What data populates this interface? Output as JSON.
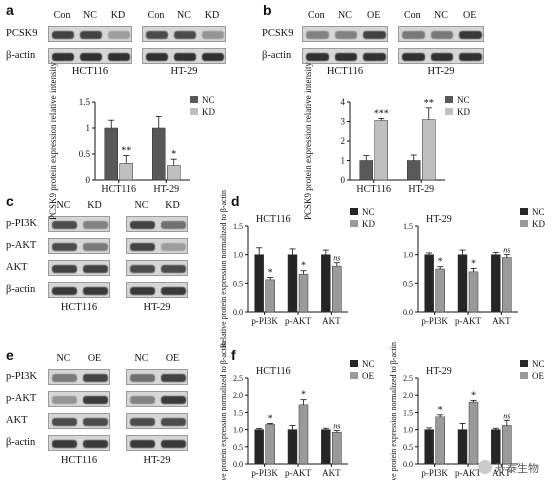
{
  "panels": {
    "a": {
      "letter": "a",
      "blot": {
        "row_labels": [
          "PCSK9",
          "β-actin"
        ],
        "groups": [
          {
            "cell_line": "HCT116",
            "lanes": [
              "Con",
              "NC",
              "KD"
            ],
            "rows": [
              [
                0.85,
                0.85,
                0.35
              ],
              [
                0.95,
                0.95,
                0.95
              ]
            ]
          },
          {
            "cell_line": "HT-29",
            "lanes": [
              "Con",
              "NC",
              "KD"
            ],
            "rows": [
              [
                0.8,
                0.8,
                0.4
              ],
              [
                0.95,
                0.95,
                0.95
              ]
            ]
          }
        ]
      }
    },
    "b": {
      "letter": "b",
      "blot": {
        "row_labels": [
          "PCSK9",
          "β-actin"
        ],
        "groups": [
          {
            "cell_line": "HCT116",
            "lanes": [
              "Con",
              "NC",
              "OE"
            ],
            "rows": [
              [
                0.5,
                0.5,
                0.85
              ],
              [
                0.95,
                0.95,
                0.95
              ]
            ]
          },
          {
            "cell_line": "HT-29",
            "lanes": [
              "Con",
              "NC",
              "OE"
            ],
            "rows": [
              [
                0.55,
                0.55,
                0.9
              ],
              [
                0.95,
                0.95,
                0.95
              ]
            ]
          }
        ]
      }
    },
    "c": {
      "letter": "c",
      "blot": {
        "row_labels": [
          "p-PI3K",
          "p-AKT",
          "AKT",
          "β-actin"
        ],
        "groups": [
          {
            "cell_line": "HCT116",
            "lanes": [
              "NC",
              "KD"
            ],
            "rows": [
              [
                0.8,
                0.5
              ],
              [
                0.8,
                0.55
              ],
              [
                0.85,
                0.85
              ],
              [
                0.9,
                0.9
              ]
            ]
          },
          {
            "cell_line": "HT-29",
            "lanes": [
              "NC",
              "KD"
            ],
            "rows": [
              [
                0.85,
                0.6
              ],
              [
                0.85,
                0.35
              ],
              [
                0.8,
                0.8
              ],
              [
                0.9,
                0.9
              ]
            ]
          }
        ]
      }
    },
    "e": {
      "letter": "e",
      "blot": {
        "row_labels": [
          "p-PI3K",
          "p-AKT",
          "AKT",
          "β-actin"
        ],
        "groups": [
          {
            "cell_line": "HCT116",
            "lanes": [
              "NC",
              "OE"
            ],
            "rows": [
              [
                0.55,
                0.85
              ],
              [
                0.4,
                0.9
              ],
              [
                0.8,
                0.8
              ],
              [
                0.9,
                0.9
              ]
            ]
          },
          {
            "cell_line": "HT-29",
            "lanes": [
              "NC",
              "OE"
            ],
            "rows": [
              [
                0.6,
                0.85
              ],
              [
                0.5,
                0.9
              ],
              [
                0.8,
                0.8
              ],
              [
                0.9,
                0.9
              ]
            ]
          }
        ]
      }
    }
  },
  "chart_data": [
    {
      "id": "a",
      "type": "bar",
      "title": "",
      "categories": [
        "HCT116",
        "HT-29"
      ],
      "ylabel": "PCSK9 protein expression relative intensity",
      "ylim": [
        0,
        1.5
      ],
      "yticks": [
        0,
        0.5,
        1,
        1.5
      ],
      "legend": "top-right",
      "series": [
        {
          "name": "NC",
          "color": "#595959",
          "values": [
            1.0,
            1.0
          ],
          "errors": [
            0.15,
            0.22
          ],
          "sig": [
            "",
            ""
          ]
        },
        {
          "name": "KD",
          "color": "#bfbfbf",
          "values": [
            0.32,
            0.28
          ],
          "errors": [
            0.15,
            0.12
          ],
          "sig": [
            "**",
            "*"
          ]
        }
      ]
    },
    {
      "id": "b",
      "type": "bar",
      "title": "",
      "categories": [
        "HCT116",
        "HT-29"
      ],
      "ylabel": "PCSK9 protein expression relative intensity",
      "ylim": [
        0,
        4
      ],
      "yticks": [
        0,
        1,
        2,
        3,
        4
      ],
      "legend": "top-right",
      "series": [
        {
          "name": "NC",
          "color": "#595959",
          "values": [
            1.0,
            1.0
          ],
          "errors": [
            0.25,
            0.28
          ],
          "sig": [
            "",
            ""
          ]
        },
        {
          "name": "KD",
          "color": "#bfbfbf",
          "values": [
            3.05,
            3.1
          ],
          "errors": [
            0.1,
            0.6
          ],
          "sig": [
            "***",
            "**"
          ]
        }
      ]
    },
    {
      "id": "d1",
      "type": "bar",
      "title": "HCT116",
      "categories": [
        "p-PI3K",
        "p-AKT",
        "AKT"
      ],
      "ylabel": "Relative protein expression normalized to β-actin",
      "ylim": [
        0,
        1.5
      ],
      "yticks": [
        0.0,
        0.5,
        1.0,
        1.5
      ],
      "legend": "top-right",
      "series": [
        {
          "name": "NC",
          "color": "#262626",
          "values": [
            1.0,
            1.0,
            1.0
          ],
          "errors": [
            0.12,
            0.1,
            0.08
          ],
          "sig": [
            "",
            "",
            ""
          ]
        },
        {
          "name": "KD",
          "color": "#9a9a9a",
          "values": [
            0.56,
            0.66,
            0.8
          ],
          "errors": [
            0.04,
            0.06,
            0.06
          ],
          "sig": [
            "*",
            "*",
            "ns"
          ]
        }
      ]
    },
    {
      "id": "d2",
      "type": "bar",
      "title": "HT-29",
      "categories": [
        "p-PI3K",
        "p-AKT",
        "AKT"
      ],
      "ylabel": "",
      "ylim": [
        0,
        1.5
      ],
      "yticks": [
        0.0,
        0.5,
        1.0,
        1.5
      ],
      "legend": "top-right",
      "series": [
        {
          "name": "NC",
          "color": "#262626",
          "values": [
            1.0,
            1.0,
            1.0
          ],
          "errors": [
            0.03,
            0.08,
            0.04
          ],
          "sig": [
            "",
            "",
            ""
          ]
        },
        {
          "name": "KD",
          "color": "#9a9a9a",
          "values": [
            0.75,
            0.7,
            0.95
          ],
          "errors": [
            0.04,
            0.06,
            0.05
          ],
          "sig": [
            "*",
            "*",
            "ns"
          ]
        }
      ]
    },
    {
      "id": "f1",
      "type": "bar",
      "title": "HCT116",
      "categories": [
        "p-PI3K",
        "p-AKT",
        "AKT"
      ],
      "ylabel": "Relative protein expression normalized to β-actin",
      "ylim": [
        0,
        2.5
      ],
      "yticks": [
        0.0,
        0.5,
        1.0,
        1.5,
        2.0,
        2.5
      ],
      "legend": "top-right",
      "series": [
        {
          "name": "NC",
          "color": "#262626",
          "values": [
            1.0,
            1.0,
            1.0
          ],
          "errors": [
            0.03,
            0.12,
            0.04
          ],
          "sig": [
            "",
            "",
            ""
          ]
        },
        {
          "name": "OE",
          "color": "#9a9a9a",
          "values": [
            1.15,
            1.72,
            0.92
          ],
          "errors": [
            0.03,
            0.15,
            0.05
          ],
          "sig": [
            "*",
            "*",
            "ns"
          ]
        }
      ]
    },
    {
      "id": "f2",
      "type": "bar",
      "title": "HT-29",
      "categories": [
        "p-PI3K",
        "p-AKT",
        "AKT"
      ],
      "ylabel": "Relative protein expression normalized to β-actin",
      "ylim": [
        0,
        2.5
      ],
      "yticks": [
        0.0,
        0.5,
        1.0,
        1.5,
        2.0,
        2.5
      ],
      "legend": "top-right",
      "series": [
        {
          "name": "NC",
          "color": "#262626",
          "values": [
            1.0,
            1.0,
            1.0
          ],
          "errors": [
            0.05,
            0.18,
            0.04
          ],
          "sig": [
            "",
            "",
            ""
          ]
        },
        {
          "name": "OE",
          "color": "#9a9a9a",
          "values": [
            1.37,
            1.8,
            1.12
          ],
          "errors": [
            0.06,
            0.05,
            0.15
          ],
          "sig": [
            "*",
            "*",
            "ns"
          ]
        }
      ]
    }
  ],
  "watermark": {
    "text": "开泰生物",
    "icon": "wechat-icon"
  }
}
